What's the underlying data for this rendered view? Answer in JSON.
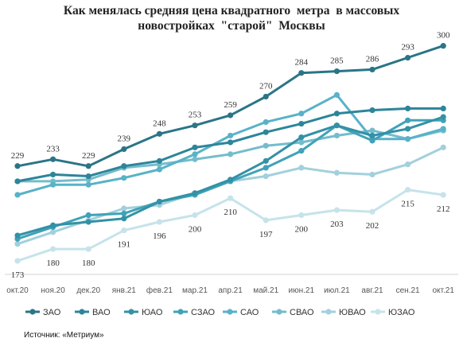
{
  "source_label": "Источник: «Метриум»",
  "chart_data": {
    "type": "line",
    "title_lines": [
      "Как менялась средняя цена квадратного  метра  в массовых",
      "новостройках  \"старой\"  Москвы"
    ],
    "xlabel": "",
    "ylabel": "",
    "ylim": [
      165,
      305
    ],
    "grid": false,
    "legend_position": "bottom",
    "categories": [
      "окт.20",
      "ноя.20",
      "дек.20",
      "янв.21",
      "фев.21",
      "мар.21",
      "апр.21",
      "май.21",
      "июн.21",
      "июл.21",
      "авг.21",
      "сен.21",
      "окт.21"
    ],
    "series": [
      {
        "name": "ЗАО",
        "color": "#2a7586",
        "values": [
          229,
          233,
          229,
          239,
          248,
          253,
          259,
          270,
          284,
          285,
          286,
          293,
          300
        ],
        "labelled": true,
        "label_position": "above"
      },
      {
        "name": "ВАО",
        "color": "#2d859a",
        "values": [
          220,
          224,
          223,
          229,
          232,
          240,
          243,
          249,
          254,
          260,
          262,
          263,
          263
        ],
        "labelled": false
      },
      {
        "name": "ЮАО",
        "color": "#3391a6",
        "values": [
          188,
          194,
          196,
          198,
          208,
          213,
          221,
          232,
          246,
          253,
          247,
          251,
          258
        ],
        "labelled": false
      },
      {
        "name": "СЗАО",
        "color": "#40a2b8",
        "values": [
          186,
          193,
          200,
          201,
          208,
          212,
          220,
          228,
          238,
          253,
          244,
          256,
          256
        ],
        "labelled": false
      },
      {
        "name": "САО",
        "color": "#58b2c8",
        "values": [
          212,
          218,
          218,
          222,
          227,
          236,
          247,
          255,
          260,
          271,
          245,
          245,
          251
        ],
        "labelled": false
      },
      {
        "name": "СВАО",
        "color": "#74bccc",
        "values": [
          220,
          220,
          221,
          228,
          230,
          233,
          236,
          241,
          243,
          247,
          250,
          245,
          250
        ],
        "labelled": false
      },
      {
        "name": "ЮВАО",
        "color": "#a2d0dc",
        "values": [
          183,
          190,
          197,
          204,
          206,
          213,
          220,
          223,
          228,
          225,
          224,
          230,
          240
        ],
        "labelled": false
      },
      {
        "name": "ЮЗАО",
        "color": "#c6e3ea",
        "values": [
          173,
          180,
          180,
          191,
          196,
          200,
          210,
          197,
          200,
          203,
          202,
          215,
          212
        ],
        "labelled": true,
        "label_position": "below"
      }
    ]
  }
}
